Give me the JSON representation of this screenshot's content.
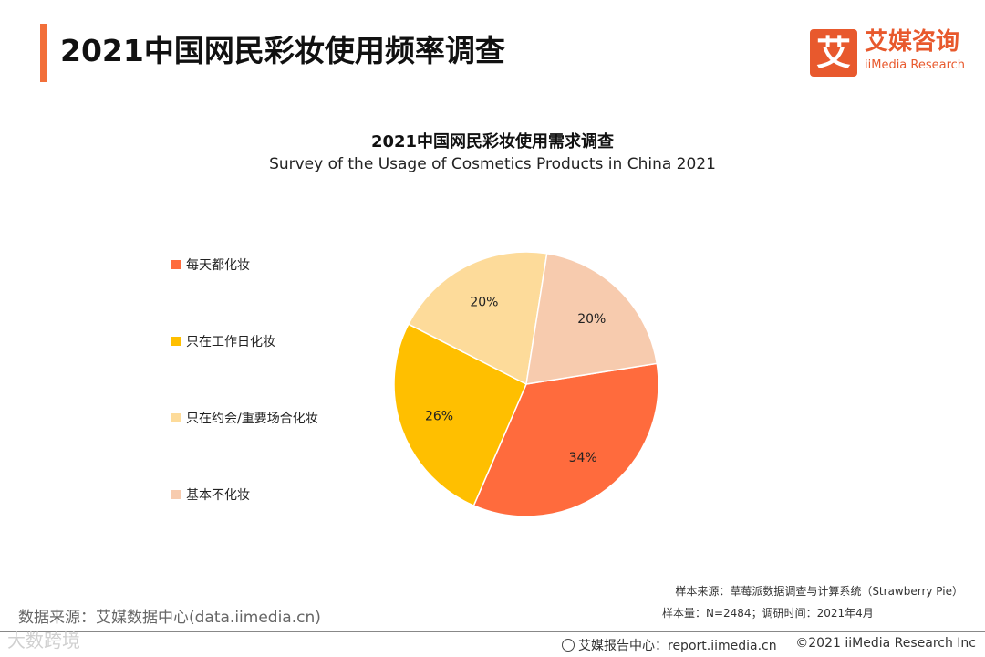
{
  "header": {
    "title": "2021中国网民彩妆使用频率调查"
  },
  "logo": {
    "mark": "艾",
    "name_cn": "艾媒咨询",
    "name_en": "iiMedia Research",
    "brand_color": "#e8592d"
  },
  "chart_data": {
    "type": "pie",
    "title": "2021中国网民彩妆使用需求调查",
    "subtitle": "Survey of the Usage of Cosmetics Products in China 2021",
    "legend_position": "left",
    "slices": [
      {
        "label": "每天都化妆",
        "value": 34,
        "value_label": "34%",
        "color": "#ff6b3d"
      },
      {
        "label": "只在工作日化妆",
        "value": 26,
        "value_label": "26%",
        "color": "#ffbf00"
      },
      {
        "label": "只在约会/重要场合化妆",
        "value": 20,
        "value_label": "20%",
        "color": "#fddb9a"
      },
      {
        "label": "基本不化妆",
        "value": 20,
        "value_label": "20%",
        "color": "#f7cbae"
      }
    ]
  },
  "footer": {
    "data_source": "数据来源：艾媒数据中心(data.iimedia.cn)",
    "sample_source": "样本来源：草莓派数据调查与计算系统（Strawberry Pie）",
    "sample_size": "样本量：N=2484；调研时间：2021年4月",
    "report_center": "艾媒报告中心：report.iimedia.cn",
    "copyright": "©2021  iiMedia Research  Inc",
    "watermark": "大数跨境"
  }
}
